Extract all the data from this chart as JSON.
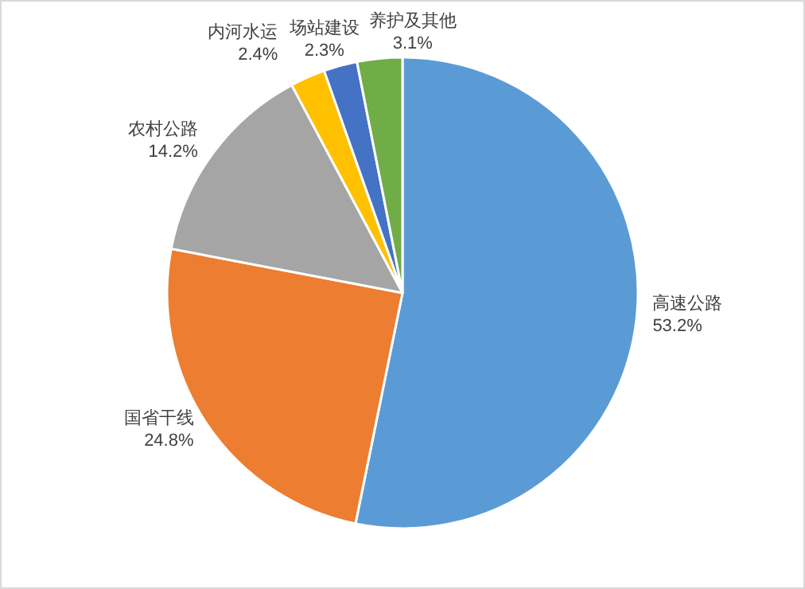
{
  "chart_data": {
    "type": "pie",
    "categories": [
      "高速公路",
      "国省干线",
      "农村公路",
      "内河水运",
      "场站建设",
      "养护及其他"
    ],
    "values": [
      53.2,
      24.8,
      14.2,
      2.4,
      2.3,
      3.1
    ],
    "colors": [
      "#5b9bd5",
      "#ed7d31",
      "#a5a5a5",
      "#ffc000",
      "#4472c4",
      "#70ad47"
    ],
    "value_labels": [
      "53.2%",
      "24.8%",
      "14.2%",
      "2.4%",
      "2.3%",
      "3.1%"
    ]
  }
}
